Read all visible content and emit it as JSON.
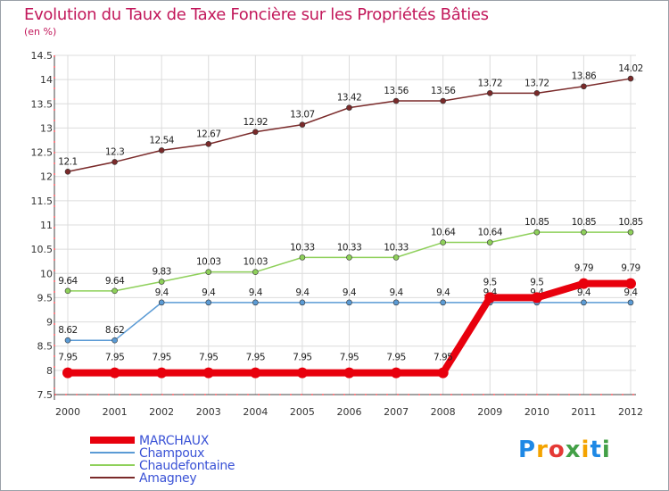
{
  "header": {
    "title": "Evolution du Taux de Taxe Foncière sur les Propriétés Bâties",
    "unit": "(en %)"
  },
  "logo": {
    "text": "Proxiti"
  },
  "chart_data": {
    "type": "line",
    "x": [
      "2000",
      "2001",
      "2002",
      "2003",
      "2004",
      "2005",
      "2006",
      "2007",
      "2008",
      "2009",
      "2010",
      "2011",
      "2012"
    ],
    "ylim": [
      7.5,
      14.5
    ],
    "yticks": [
      7.5,
      8,
      8.5,
      9,
      9.5,
      10,
      10.5,
      11,
      11.5,
      12,
      12.5,
      13,
      13.5,
      14,
      14.5
    ],
    "grid": true,
    "legend_position": "bottom-left",
    "series": [
      {
        "name": "MARCHAUX",
        "color": "#e8000d",
        "width": 8,
        "marker": 6,
        "values": [
          7.95,
          7.95,
          7.95,
          7.95,
          7.95,
          7.95,
          7.95,
          7.95,
          7.95,
          9.5,
          9.5,
          9.79,
          9.79
        ],
        "labels": [
          "7.95",
          "7.95",
          "7.95",
          "7.95",
          "7.95",
          "7.95",
          "7.95",
          "7.95",
          "7.95",
          "9.5",
          "9.5",
          "9.79",
          "9.79"
        ]
      },
      {
        "name": "Champoux",
        "color": "#5b9bd5",
        "width": 1.5,
        "marker": 3,
        "values": [
          8.62,
          8.62,
          9.4,
          9.4,
          9.4,
          9.4,
          9.4,
          9.4,
          9.4,
          9.4,
          9.4,
          9.4,
          9.4
        ],
        "labels": [
          "8.62",
          "8.62",
          "9.4",
          "9.4",
          "9.4",
          "9.4",
          "9.4",
          "9.4",
          "9.4",
          "9.4",
          "9.4",
          "9.4",
          "9.4"
        ]
      },
      {
        "name": "Chaudefontaine",
        "color": "#8ed05a",
        "width": 1.5,
        "marker": 3,
        "values": [
          9.64,
          9.64,
          9.83,
          10.03,
          10.03,
          10.33,
          10.33,
          10.33,
          10.64,
          10.64,
          10.85,
          10.85,
          10.85
        ],
        "labels": [
          "9.64",
          "9.64",
          "9.83",
          "10.03",
          "10.03",
          "10.33",
          "10.33",
          "10.33",
          "10.64",
          "10.64",
          "10.85",
          "10.85",
          "10.85"
        ]
      },
      {
        "name": "Amagney",
        "color": "#7a2a2a",
        "width": 1.5,
        "marker": 3,
        "values": [
          12.1,
          12.3,
          12.54,
          12.67,
          12.92,
          13.07,
          13.42,
          13.56,
          13.56,
          13.72,
          13.72,
          13.86,
          14.02
        ],
        "labels": [
          "12.1",
          "12.3",
          "12.54",
          "12.67",
          "12.92",
          "13.07",
          "13.42",
          "13.56",
          "13.56",
          "13.72",
          "13.72",
          "13.86",
          "14.02"
        ]
      }
    ]
  }
}
